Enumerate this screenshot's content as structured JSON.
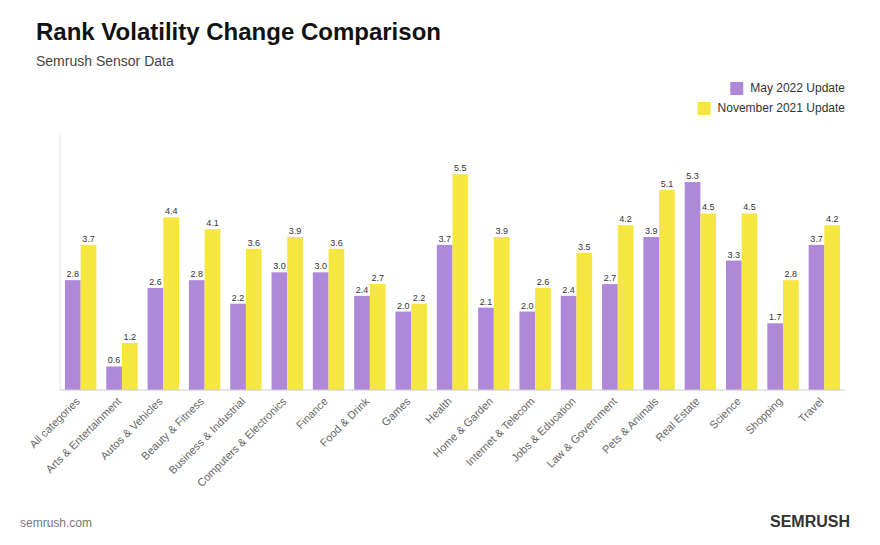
{
  "chart_data": {
    "type": "bar",
    "title": "Rank Volatility Change Comparison",
    "subtitle": "Semrush Sensor Data",
    "categories": [
      "All categories",
      "Arts & Entertainment",
      "Autos & Vehicles",
      "Beauty & Fitness",
      "Business & Industrial",
      "Computers & Electronics",
      "Finance",
      "Food & Drink",
      "Games",
      "Health",
      "Home & Garden",
      "Internet & Telecom",
      "Jobs & Education",
      "Law & Government",
      "Pets & Animals",
      "Real Estate",
      "Science",
      "Shopping",
      "Travel"
    ],
    "series": [
      {
        "name": "May 2022 Update",
        "color": "#b088d9",
        "values": [
          2.8,
          0.6,
          2.6,
          2.8,
          2.2,
          3.0,
          3.0,
          2.4,
          2.0,
          3.7,
          2.1,
          2.0,
          2.4,
          2.7,
          3.9,
          5.3,
          3.3,
          1.7,
          3.7
        ],
        "value_labels": [
          "2.8",
          "0.6",
          "2.6",
          "2.8",
          "2.2",
          "3.0",
          "3.0",
          "2.4",
          "2.0",
          "3.7",
          "2.1",
          "2.0",
          "2.4",
          "2.7",
          "3.9",
          "5.3",
          "3.3",
          "1.7",
          "3.7"
        ]
      },
      {
        "name": "November 2021 Update",
        "color": "#f5e642",
        "values": [
          3.7,
          1.2,
          4.4,
          4.1,
          3.6,
          3.9,
          3.6,
          2.7,
          2.2,
          5.5,
          3.9,
          2.6,
          3.5,
          4.2,
          5.1,
          4.5,
          4.5,
          2.8,
          4.2
        ],
        "value_labels": [
          "3.7",
          "1.2",
          "4.4",
          "4.1",
          "3.6",
          "3.9",
          "3.6",
          "2.7",
          "2.2",
          "5.5",
          "3.9",
          "2.6",
          "3.5",
          "4.2",
          "5.1",
          "4.5",
          "4.5",
          "2.8",
          "4.2"
        ]
      }
    ],
    "ylim": [
      0,
      6.5
    ],
    "grid": false,
    "legend": "upper right",
    "data_labels": true,
    "tick_labels": "x",
    "annotations": [
      "semrush.com",
      "SEMRUSH"
    ]
  }
}
